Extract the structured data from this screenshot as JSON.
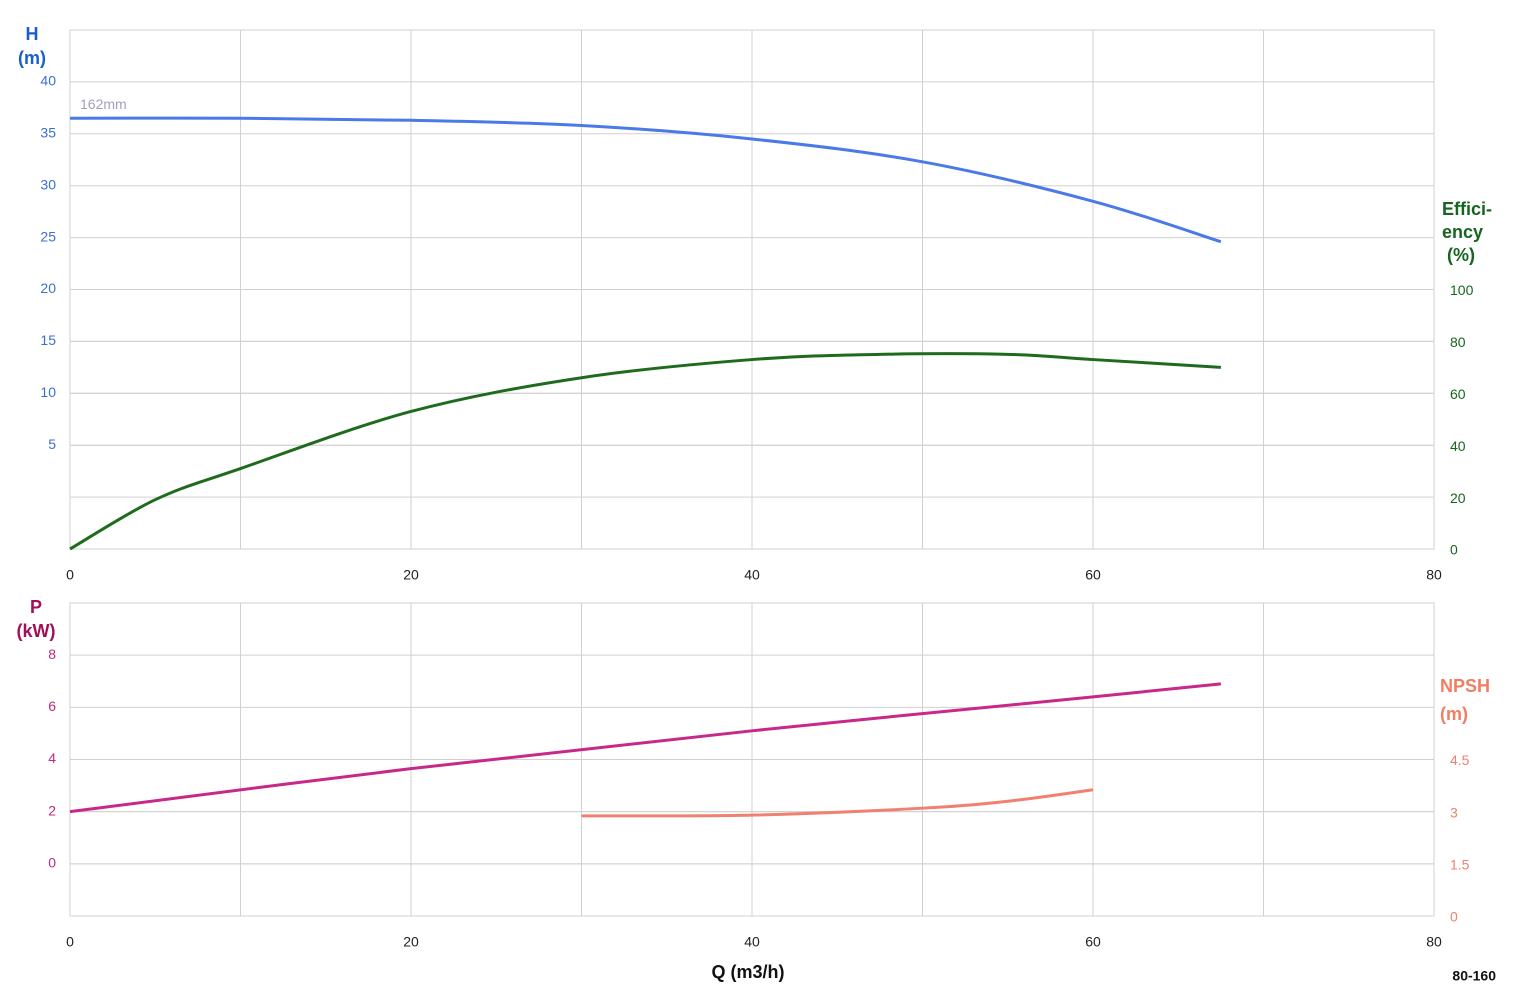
{
  "chart_data": [
    {
      "type": "line",
      "ylabel": [
        "H",
        "(m)"
      ],
      "ylabel_color": "#1a5fd0",
      "y2label": [
        "Effici-",
        "ency",
        "(%)"
      ],
      "y2label_color": "#15651f",
      "xlim": [
        0,
        80
      ],
      "xticks": [
        0,
        20,
        40,
        60,
        80
      ],
      "xgrid": [
        10,
        30,
        50,
        70
      ],
      "ylim": [
        -5,
        45
      ],
      "yticks": [
        5,
        10,
        15,
        20,
        25,
        30,
        35,
        40
      ],
      "ytick_color": "#3a6fd8",
      "y2lim": [
        0,
        200
      ],
      "y2ticks": [
        0,
        20,
        40,
        60,
        80,
        100
      ],
      "y2tick_color": "#15651f",
      "grid": true,
      "series": [
        {
          "name": "162mm",
          "color": "#4a7ae8",
          "axis": "y",
          "x": [
            0,
            10,
            20,
            30,
            40,
            50,
            60,
            67.5
          ],
          "values": [
            36.5,
            36.5,
            36.3,
            35.8,
            34.5,
            32.3,
            28.5,
            24.6
          ]
        },
        {
          "color": "#1e6b1e",
          "axis": "y2",
          "x": [
            0,
            5,
            10,
            20,
            30,
            40,
            47.5,
            55,
            60,
            67.5
          ],
          "values": [
            0,
            19,
            31,
            53,
            66,
            73,
            75,
            75,
            73,
            70
          ]
        }
      ]
    },
    {
      "type": "line",
      "ylabel": [
        "P",
        "(kW)"
      ],
      "ylabel_color": "#a0105a",
      "y2label": [
        "NPSH",
        "(m)"
      ],
      "y2label_color": "#f07e62",
      "xlabel": "Q (m3/h)",
      "label": "80-160",
      "xlim": [
        0,
        80
      ],
      "xticks": [
        0,
        20,
        40,
        60,
        80
      ],
      "xgrid": [
        10,
        30,
        50,
        70
      ],
      "ylim": [
        -2,
        10
      ],
      "yticks": [
        0,
        2,
        4,
        6,
        8
      ],
      "ytick_color": "#c0287f",
      "y2lim": [
        0,
        9
      ],
      "y2ticks": [
        0,
        1.5,
        3,
        4.5
      ],
      "y2tick_color": "#f08070",
      "grid": true,
      "series": [
        {
          "color": "#c8288a",
          "axis": "y",
          "x": [
            0,
            20,
            40,
            60,
            67.5
          ],
          "values": [
            2.0,
            3.65,
            5.1,
            6.4,
            6.9
          ]
        },
        {
          "color": "#f08070",
          "axis": "y2",
          "x": [
            30,
            40,
            50,
            55,
            60
          ],
          "values": [
            2.88,
            2.9,
            3.1,
            3.3,
            3.63
          ]
        }
      ]
    }
  ]
}
